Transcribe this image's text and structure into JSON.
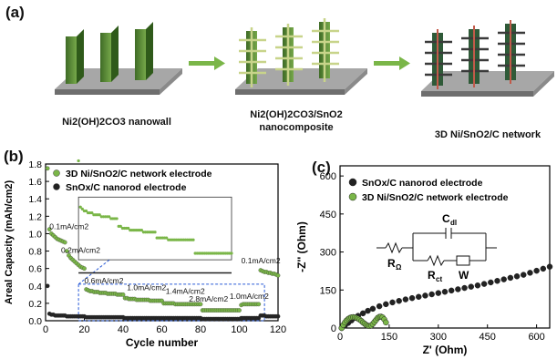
{
  "panel_a": {
    "label": "(a)",
    "captions": [
      "Ni2(OH)2CO3 nanowall",
      "Ni2(OH)2CO3/SnO2",
      "nanocomposite",
      "3D Ni/SnO2/C network"
    ]
  },
  "panel_b": {
    "label": "(b)",
    "annotations": [
      "0.1mA/cm2",
      "0.2mA/cm2",
      "0.6mA/cm2",
      "1.0mA/cm2",
      "1.4mA/cm2",
      "2.8mA/cm2",
      "1.0mA/cm2",
      "0.1mA/cm2"
    ]
  },
  "panel_c": {
    "label": "(c)",
    "circuit_labels": [
      "C",
      "dl",
      "R",
      "Ω",
      "R",
      "ct",
      "W"
    ]
  },
  "chart_data": [
    {
      "type": "scatter",
      "xlabel": "Cycle number",
      "ylabel": "Areal Capacity (mAh/cm2)",
      "xlim": [
        0,
        120
      ],
      "ylim": [
        0,
        1.8
      ],
      "xticks": [
        0,
        20,
        40,
        60,
        80,
        100,
        120
      ],
      "yticks": [
        0.0,
        0.2,
        0.4,
        0.6,
        0.8,
        1.0,
        1.2,
        1.4,
        1.6,
        1.8
      ],
      "legend": "top",
      "series": [
        {
          "name": "3D Ni/SnO2/C network electrode",
          "color": "#7ab648",
          "x": [
            1,
            2,
            3,
            4,
            5,
            6,
            7,
            8,
            9,
            10,
            11,
            12,
            13,
            14,
            15,
            16,
            17,
            18,
            19,
            20,
            21,
            22,
            23,
            24,
            25,
            26,
            27,
            28,
            29,
            30,
            31,
            32,
            33,
            34,
            35,
            36,
            37,
            38,
            39,
            40,
            41,
            42,
            43,
            44,
            45,
            46,
            47,
            48,
            49,
            50,
            51,
            52,
            53,
            54,
            55,
            56,
            57,
            58,
            59,
            60,
            61,
            62,
            63,
            64,
            65,
            66,
            67,
            68,
            69,
            70,
            71,
            72,
            73,
            74,
            75,
            76,
            77,
            78,
            79,
            80,
            81,
            82,
            83,
            84,
            85,
            86,
            87,
            88,
            89,
            90,
            91,
            92,
            93,
            94,
            95,
            96,
            97,
            98,
            99,
            100,
            101,
            102,
            103,
            104,
            105,
            106,
            107,
            108,
            109,
            110,
            111,
            112,
            113,
            114,
            115,
            116,
            117,
            118,
            119,
            120
          ],
          "y": [
            1.75,
            1.05,
            1.0,
            0.98,
            0.96,
            0.94,
            0.93,
            0.92,
            0.91,
            0.9,
            0.8,
            0.75,
            0.72,
            0.7,
            0.68,
            0.66,
            0.64,
            0.62,
            0.61,
            0.6,
            0.36,
            0.35,
            0.34,
            0.34,
            0.33,
            0.33,
            0.33,
            0.32,
            0.32,
            0.32,
            0.32,
            0.31,
            0.31,
            0.31,
            0.31,
            0.31,
            0.3,
            0.3,
            0.3,
            0.3,
            0.26,
            0.26,
            0.25,
            0.25,
            0.25,
            0.25,
            0.24,
            0.24,
            0.24,
            0.24,
            0.24,
            0.24,
            0.24,
            0.23,
            0.23,
            0.23,
            0.23,
            0.23,
            0.23,
            0.23,
            0.2,
            0.2,
            0.2,
            0.2,
            0.2,
            0.2,
            0.19,
            0.19,
            0.19,
            0.19,
            0.19,
            0.19,
            0.19,
            0.19,
            0.19,
            0.19,
            0.19,
            0.19,
            0.19,
            0.19,
            0.12,
            0.12,
            0.12,
            0.12,
            0.12,
            0.12,
            0.12,
            0.12,
            0.12,
            0.12,
            0.12,
            0.12,
            0.12,
            0.12,
            0.12,
            0.12,
            0.12,
            0.12,
            0.12,
            0.12,
            0.18,
            0.19,
            0.19,
            0.19,
            0.19,
            0.19,
            0.19,
            0.19,
            0.19,
            0.19,
            0.58,
            0.57,
            0.56,
            0.56,
            0.55,
            0.55,
            0.54,
            0.54,
            0.53,
            0.52
          ]
        },
        {
          "name": "SnOx/C nanorod electrode",
          "color": "#222222",
          "x": [
            1,
            2,
            3,
            4,
            5,
            6,
            7,
            8,
            9,
            10,
            11,
            12,
            13,
            14,
            15,
            16,
            17,
            18,
            19,
            20,
            21,
            22,
            23,
            24,
            25,
            26,
            27,
            28,
            29,
            30,
            31,
            32,
            33,
            34,
            35,
            36,
            37,
            38,
            39,
            40,
            41,
            42,
            43,
            44,
            45,
            46,
            47,
            48,
            49,
            50,
            51,
            52,
            53,
            54,
            55,
            56,
            57,
            58,
            59,
            60,
            61,
            62,
            63,
            64,
            65,
            66,
            67,
            68,
            69,
            70,
            71,
            72,
            73,
            74,
            75,
            76,
            77,
            78,
            79,
            80,
            81,
            82,
            83,
            84,
            85,
            86,
            87,
            88,
            89,
            90,
            91,
            92,
            93,
            94,
            95,
            96,
            97,
            98,
            99,
            100,
            101,
            102,
            103,
            104,
            105,
            106,
            107,
            108,
            109,
            110,
            111,
            112,
            113,
            114,
            115,
            116,
            117,
            118,
            119,
            120
          ],
          "y": [
            0.4,
            0.08,
            0.07,
            0.07,
            0.06,
            0.06,
            0.06,
            0.06,
            0.06,
            0.06,
            0.05,
            0.05,
            0.05,
            0.05,
            0.05,
            0.05,
            0.05,
            0.05,
            0.05,
            0.05,
            0.04,
            0.04,
            0.04,
            0.04,
            0.04,
            0.04,
            0.04,
            0.04,
            0.04,
            0.04,
            0.04,
            0.04,
            0.04,
            0.04,
            0.04,
            0.04,
            0.04,
            0.04,
            0.04,
            0.04,
            0.03,
            0.03,
            0.03,
            0.03,
            0.03,
            0.03,
            0.03,
            0.03,
            0.03,
            0.03,
            0.03,
            0.03,
            0.03,
            0.03,
            0.03,
            0.03,
            0.03,
            0.03,
            0.03,
            0.03,
            0.03,
            0.03,
            0.03,
            0.03,
            0.03,
            0.03,
            0.03,
            0.03,
            0.03,
            0.03,
            0.03,
            0.03,
            0.03,
            0.03,
            0.03,
            0.03,
            0.03,
            0.03,
            0.03,
            0.03,
            0.02,
            0.02,
            0.02,
            0.02,
            0.02,
            0.02,
            0.02,
            0.02,
            0.02,
            0.02,
            0.02,
            0.02,
            0.02,
            0.02,
            0.02,
            0.02,
            0.02,
            0.02,
            0.02,
            0.02,
            0.03,
            0.03,
            0.03,
            0.03,
            0.03,
            0.03,
            0.03,
            0.03,
            0.03,
            0.03,
            0.06,
            0.06,
            0.06,
            0.05,
            0.05,
            0.05,
            0.05,
            0.05,
            0.05,
            0.05
          ]
        }
      ]
    },
    {
      "type": "scatter",
      "xlabel": "Z' (Ohm)",
      "ylabel": "-Z'' (Ohm)",
      "xlim": [
        0,
        640
      ],
      "ylim": [
        0,
        640
      ],
      "xticks": [
        0,
        150,
        300,
        450,
        600
      ],
      "yticks": [
        0,
        150,
        300,
        450,
        600
      ],
      "legend": "top-left",
      "series": [
        {
          "name": "SnOx/C nanorod electrode",
          "color": "#222222",
          "x": [
            5,
            15,
            25,
            35,
            45,
            55,
            70,
            85,
            100,
            120,
            140,
            160,
            180,
            200,
            220,
            240,
            260,
            280,
            300,
            320,
            340,
            360,
            380,
            400,
            420,
            440,
            460,
            480,
            500,
            520,
            540,
            560,
            580,
            600,
            620,
            640
          ],
          "y": [
            0,
            10,
            20,
            30,
            40,
            48,
            58,
            68,
            76,
            86,
            94,
            101,
            107,
            113,
            118,
            123,
            128,
            133,
            138,
            143,
            148,
            153,
            158,
            163,
            168,
            174,
            180,
            186,
            192,
            198,
            204,
            210,
            218,
            226,
            234,
            242
          ]
        },
        {
          "name": "3D Ni/SnO2/C network electrode",
          "color": "#7ab648",
          "x": [
            5,
            10,
            15,
            20,
            25,
            30,
            35,
            40,
            45,
            50,
            55,
            60,
            65,
            70,
            75,
            80,
            85,
            90,
            95,
            100,
            105,
            110,
            115,
            120,
            125,
            130,
            135,
            140
          ],
          "y": [
            0,
            12,
            22,
            30,
            36,
            40,
            42,
            43,
            42,
            40,
            37,
            33,
            28,
            22,
            17,
            12,
            9,
            8,
            10,
            16,
            24,
            32,
            40,
            44,
            45,
            42,
            34,
            22
          ]
        }
      ]
    }
  ]
}
